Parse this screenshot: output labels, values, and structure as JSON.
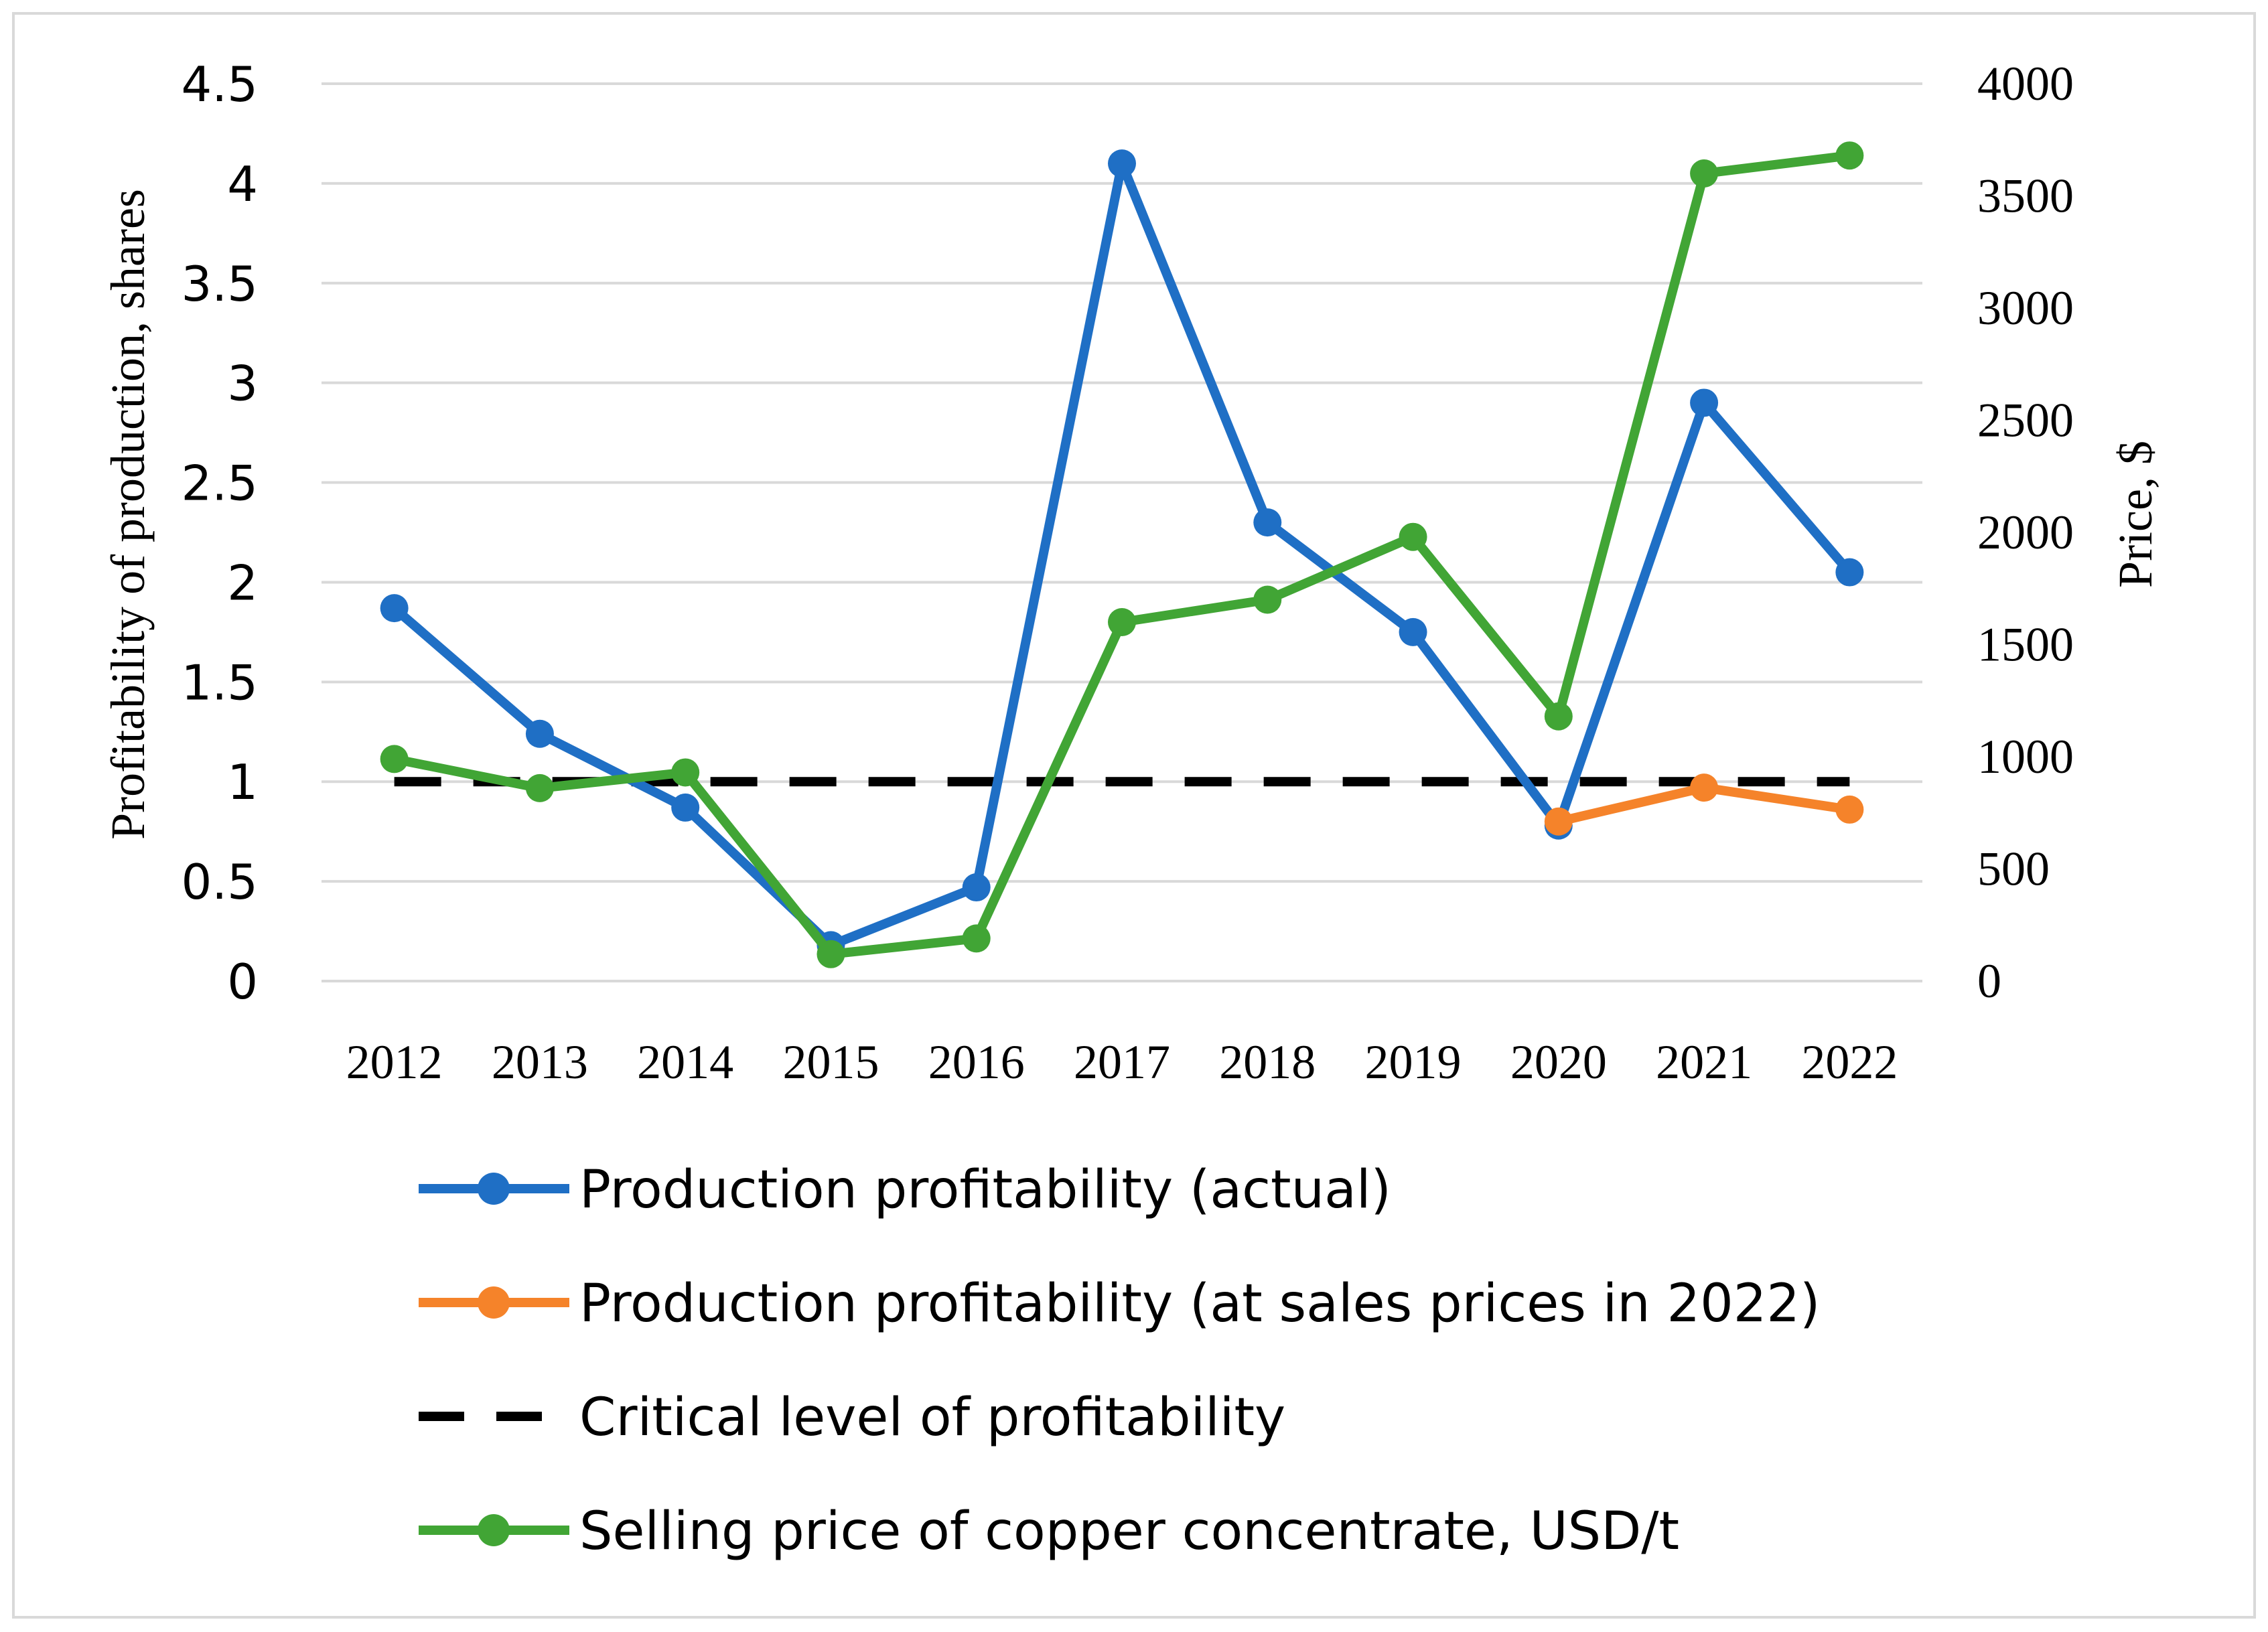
{
  "chart_data": {
    "type": "line",
    "categories": [
      "2012",
      "2013",
      "2014",
      "2015",
      "2016",
      "2017",
      "2018",
      "2019",
      "2020",
      "2021",
      "2022"
    ],
    "y_left": {
      "label": "Profitability of production, shares",
      "range": [
        0,
        4.5
      ],
      "ticks": [
        "0",
        "0.5",
        "1",
        "1.5",
        "2",
        "2.5",
        "3",
        "3.5",
        "4",
        "4.5"
      ]
    },
    "y_right": {
      "label": "Price, $",
      "range": [
        0,
        4000
      ],
      "ticks": [
        "0",
        "500",
        "1000",
        "1500",
        "2000",
        "2500",
        "3000",
        "3500",
        "4000"
      ]
    },
    "grid": true,
    "legend_position": "bottom",
    "series": [
      {
        "name": "Production profitability (actual)",
        "axis": "left",
        "color": "#1f6fc5",
        "style": "solid",
        "markers": true,
        "values": [
          1.87,
          1.24,
          0.87,
          0.18,
          0.47,
          4.1,
          2.3,
          1.75,
          0.78,
          2.9,
          2.05
        ]
      },
      {
        "name": "Production profitability (at sales prices in 2022)",
        "axis": "left",
        "color": "#f5832a",
        "style": "solid",
        "markers": true,
        "values": [
          null,
          null,
          null,
          null,
          null,
          null,
          null,
          null,
          0.8,
          0.97,
          0.86
        ]
      },
      {
        "name": "Critical level of profitability",
        "axis": "left",
        "color": "#000000",
        "style": "dashed",
        "markers": false,
        "values": [
          1,
          1,
          1,
          1,
          1,
          1,
          1,
          1,
          1,
          1,
          1
        ]
      },
      {
        "name": "Selling price of copper concentrate, USD/t",
        "axis": "right",
        "color": "#41a535",
        "style": "solid",
        "markers": true,
        "values": [
          990,
          860,
          930,
          120,
          190,
          1600,
          1700,
          1980,
          1180,
          3600,
          3680
        ]
      }
    ]
  }
}
